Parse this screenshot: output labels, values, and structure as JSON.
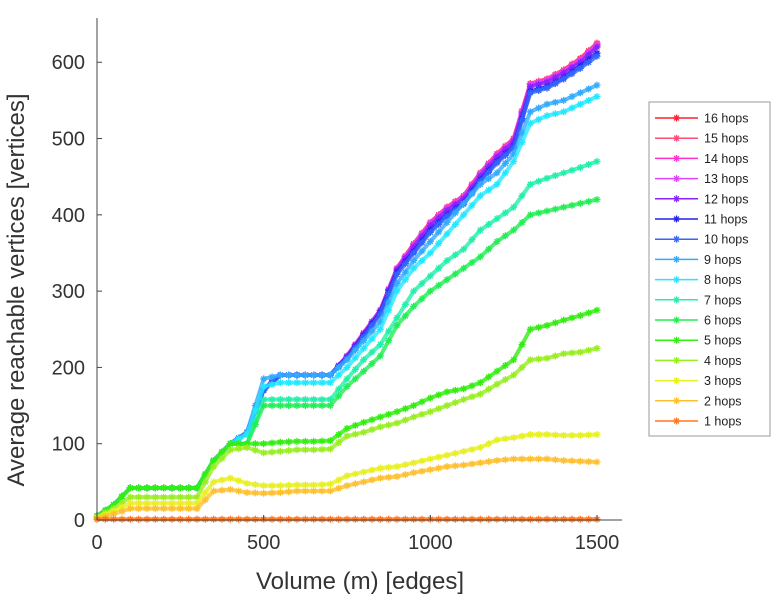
{
  "chart_data": {
    "type": "line",
    "title": "",
    "xlabel": "Volume (m) [edges]",
    "ylabel": "Average reachable vertices [vertices]",
    "xlim": [
      0,
      1575
    ],
    "ylim": [
      0,
      658
    ],
    "xticks": [
      0,
      500,
      1000,
      1500
    ],
    "yticks": [
      0,
      100,
      200,
      300,
      400,
      500,
      600
    ],
    "grid": false,
    "legend_position": "outside-right",
    "x": [
      0,
      50,
      100,
      150,
      200,
      250,
      300,
      350,
      400,
      450,
      500,
      550,
      600,
      650,
      700,
      750,
      800,
      850,
      900,
      950,
      1000,
      1050,
      1100,
      1150,
      1200,
      1250,
      1300,
      1350,
      1400,
      1450,
      1500
    ],
    "series": [
      {
        "name": "16 hops",
        "color": "#ff2030",
        "values": [
          5,
          20,
          42,
          42,
          42,
          42,
          42,
          78,
          100,
          115,
          172,
          190,
          190,
          190,
          190,
          215,
          245,
          275,
          330,
          362,
          390,
          410,
          425,
          455,
          480,
          500,
          572,
          578,
          590,
          605,
          625
        ]
      },
      {
        "name": "15 hops",
        "color": "#ff4d7a",
        "values": [
          5,
          20,
          42,
          42,
          42,
          42,
          42,
          78,
          100,
          115,
          172,
          190,
          190,
          190,
          190,
          215,
          245,
          275,
          330,
          362,
          390,
          410,
          425,
          455,
          480,
          500,
          572,
          578,
          590,
          604,
          624
        ]
      },
      {
        "name": "14 hops",
        "color": "#ff33cc",
        "values": [
          5,
          20,
          42,
          42,
          42,
          42,
          42,
          78,
          100,
          115,
          172,
          190,
          190,
          190,
          190,
          215,
          245,
          275,
          330,
          361,
          389,
          409,
          424,
          454,
          479,
          499,
          571,
          577,
          589,
          603,
          623
        ]
      },
      {
        "name": "13 hops",
        "color": "#dd44ff",
        "values": [
          5,
          20,
          42,
          42,
          42,
          42,
          42,
          78,
          100,
          115,
          172,
          190,
          190,
          190,
          190,
          215,
          245,
          275,
          329,
          360,
          388,
          408,
          423,
          453,
          478,
          498,
          570,
          576,
          588,
          602,
          622
        ]
      },
      {
        "name": "12 hops",
        "color": "#8822ff",
        "values": [
          5,
          20,
          42,
          42,
          42,
          42,
          42,
          78,
          100,
          115,
          171,
          190,
          190,
          190,
          190,
          214,
          244,
          274,
          328,
          358,
          386,
          406,
          421,
          451,
          476,
          496,
          568,
          574,
          586,
          600,
          620
        ]
      },
      {
        "name": "11 hops",
        "color": "#2222ee",
        "values": [
          5,
          20,
          42,
          42,
          42,
          42,
          42,
          78,
          100,
          115,
          170,
          190,
          190,
          190,
          190,
          213,
          242,
          272,
          325,
          352,
          380,
          400,
          416,
          446,
          470,
          490,
          562,
          568,
          580,
          595,
          612
        ]
      },
      {
        "name": "10 hops",
        "color": "#3366ff",
        "values": [
          5,
          20,
          42,
          42,
          42,
          42,
          42,
          78,
          100,
          115,
          170,
          190,
          190,
          190,
          190,
          212,
          240,
          270,
          322,
          350,
          377,
          398,
          414,
          444,
          468,
          488,
          560,
          566,
          578,
          592,
          608
        ]
      },
      {
        "name": "9 hops",
        "color": "#33aaff",
        "values": [
          5,
          20,
          42,
          42,
          42,
          42,
          42,
          78,
          100,
          115,
          185,
          190,
          190,
          190,
          190,
          210,
          235,
          260,
          310,
          340,
          365,
          390,
          415,
          440,
          455,
          480,
          535,
          545,
          550,
          560,
          570
        ]
      },
      {
        "name": "8 hops",
        "color": "#22e8ff",
        "values": [
          5,
          20,
          42,
          42,
          42,
          42,
          42,
          78,
          100,
          112,
          175,
          180,
          180,
          180,
          180,
          200,
          225,
          250,
          300,
          330,
          350,
          375,
          400,
          425,
          440,
          470,
          520,
          530,
          535,
          545,
          555
        ]
      },
      {
        "name": "7 hops",
        "color": "#22f0aa",
        "values": [
          5,
          20,
          42,
          42,
          42,
          42,
          42,
          78,
          100,
          100,
          158,
          158,
          158,
          158,
          158,
          185,
          210,
          230,
          265,
          300,
          320,
          340,
          355,
          380,
          395,
          410,
          440,
          448,
          455,
          462,
          470
        ]
      },
      {
        "name": "6 hops",
        "color": "#22ee55",
        "values": [
          5,
          20,
          42,
          42,
          42,
          42,
          42,
          78,
          100,
          100,
          150,
          150,
          150,
          150,
          150,
          175,
          195,
          215,
          255,
          280,
          300,
          315,
          330,
          345,
          365,
          380,
          400,
          405,
          410,
          415,
          420
        ]
      },
      {
        "name": "5 hops",
        "color": "#33ee11",
        "values": [
          5,
          20,
          42,
          42,
          42,
          42,
          42,
          78,
          100,
          100,
          100,
          102,
          103,
          103,
          104,
          120,
          128,
          135,
          142,
          150,
          160,
          168,
          172,
          180,
          195,
          210,
          250,
          255,
          262,
          268,
          275
        ]
      },
      {
        "name": "4 hops",
        "color": "#99ee22",
        "values": [
          4,
          15,
          30,
          30,
          30,
          30,
          30,
          70,
          92,
          95,
          88,
          90,
          92,
          92,
          93,
          110,
          115,
          122,
          127,
          135,
          142,
          150,
          158,
          165,
          178,
          190,
          210,
          212,
          218,
          220,
          225
        ]
      },
      {
        "name": "3 hops",
        "color": "#e8f022",
        "values": [
          3,
          12,
          22,
          22,
          22,
          22,
          22,
          50,
          55,
          48,
          45,
          45,
          46,
          46,
          47,
          58,
          63,
          68,
          70,
          75,
          80,
          85,
          90,
          95,
          105,
          108,
          112,
          112,
          111,
          111,
          112
        ]
      },
      {
        "name": "2 hops",
        "color": "#ffc030",
        "values": [
          2,
          8,
          15,
          15,
          15,
          15,
          15,
          38,
          40,
          36,
          35,
          36,
          38,
          38,
          38,
          45,
          50,
          55,
          57,
          62,
          66,
          70,
          72,
          75,
          78,
          80,
          80,
          80,
          78,
          77,
          76
        ]
      },
      {
        "name": "1 hops",
        "color": "#ff7722",
        "values": [
          1,
          1,
          1,
          1,
          1,
          1,
          1,
          1,
          1,
          1,
          1,
          1,
          1,
          1,
          1,
          1,
          1,
          1,
          1,
          1,
          1,
          1,
          1,
          1,
          1,
          1,
          1,
          1,
          1,
          1,
          1
        ]
      }
    ]
  }
}
